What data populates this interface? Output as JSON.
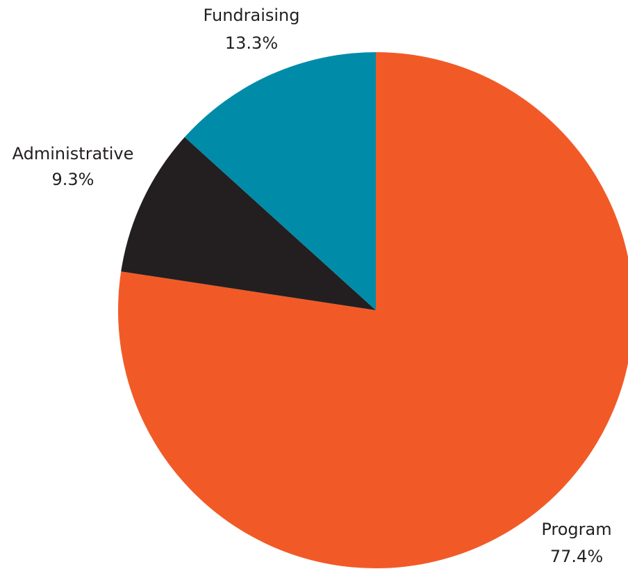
{
  "chart_data": {
    "type": "pie",
    "slices": [
      {
        "label": "Program",
        "value": 77.4,
        "value_label": "77.4%",
        "color": "#f15a27"
      },
      {
        "label": "Administrative",
        "value": 9.3,
        "value_label": "9.3%",
        "color": "#231f20"
      },
      {
        "label": "Fundraising",
        "value": 13.3,
        "value_label": "13.3%",
        "color": "#008ca8"
      }
    ],
    "start_angle": "12 o'clock",
    "direction": "clockwise",
    "legend": "none",
    "labels": "outside slices"
  }
}
